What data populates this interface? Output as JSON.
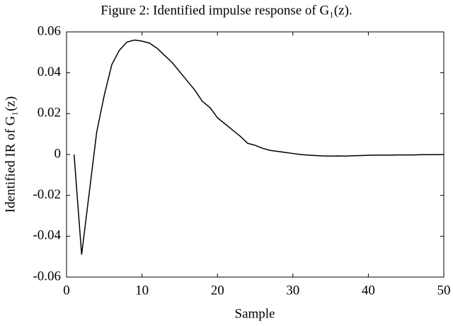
{
  "chart_data": {
    "type": "line",
    "title": "Figure 2: Identified impulse response of G₁(z).",
    "x_label": "Sample",
    "y_label": "Identified IR of G₁(z)",
    "x": [
      1,
      2,
      3,
      4,
      5,
      6,
      7,
      8,
      9,
      10,
      11,
      12,
      13,
      14,
      15,
      16,
      17,
      18,
      19,
      20,
      21,
      22,
      23,
      24,
      25,
      26,
      27,
      28,
      29,
      30,
      31,
      32,
      33,
      34,
      35,
      36,
      37,
      38,
      39,
      40,
      41,
      42,
      43,
      44,
      45,
      46,
      47,
      48,
      49,
      50
    ],
    "series": [
      {
        "name": "Identified IR",
        "color": "#000000",
        "values": [
          0,
          -0.049,
          -0.019,
          0.011,
          0.029,
          0.044,
          0.051,
          0.055,
          0.056,
          0.0555,
          0.0545,
          0.052,
          0.0485,
          0.045,
          0.0405,
          0.036,
          0.0315,
          0.026,
          0.023,
          0.018,
          0.015,
          0.012,
          0.009,
          0.0055,
          0.0045,
          0.003,
          0.002,
          0.0015,
          0.001,
          0.0005,
          0,
          -0.0003,
          -0.0005,
          -0.0007,
          -0.0008,
          -0.0007,
          -0.0008,
          -0.0006,
          -0.0005,
          -0.0004,
          -0.0003,
          -0.0003,
          -0.0003,
          -0.0002,
          -0.0002,
          -0.0002,
          -0.0001,
          -0.0001,
          -0.0001,
          0
        ]
      }
    ],
    "xlim": [
      0,
      50
    ],
    "xticks": [
      0,
      10,
      20,
      30,
      40,
      50
    ],
    "ylim": [
      -0.06,
      0.06
    ],
    "yticks": [
      -0.06,
      -0.04,
      -0.02,
      0,
      0.02,
      0.04,
      0.06
    ],
    "grid": false
  }
}
